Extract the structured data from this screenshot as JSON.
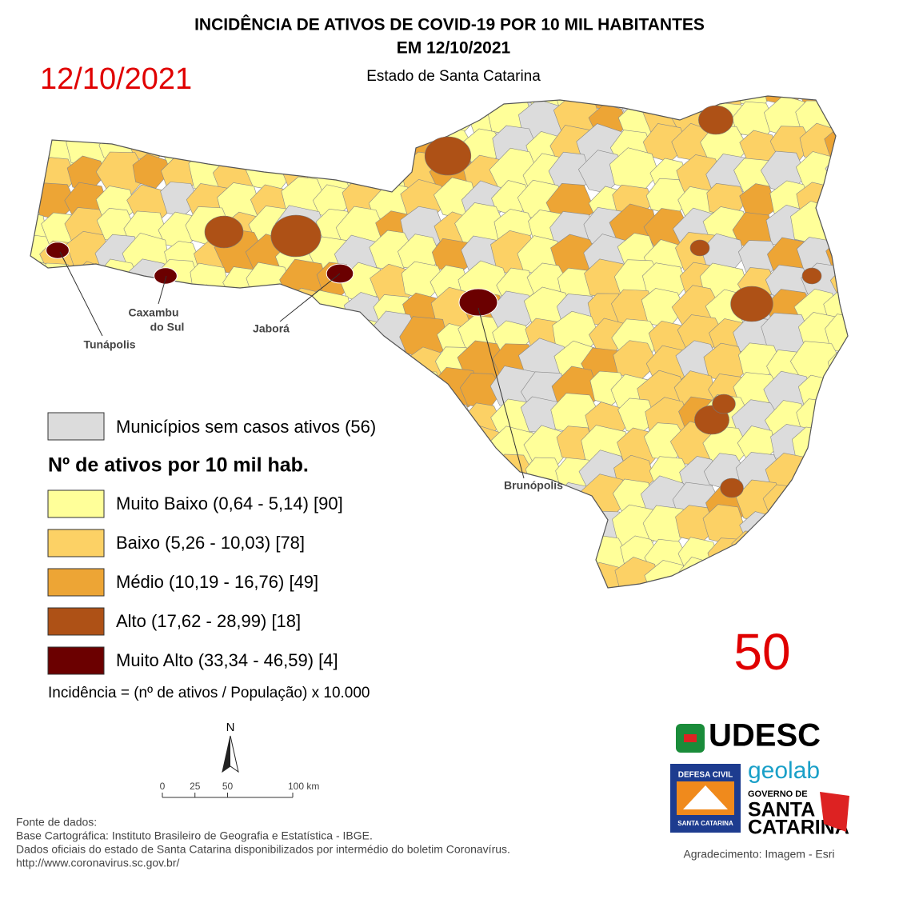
{
  "header": {
    "title_line1": "INCIDÊNCIA DE ATIVOS DE COVID-19 POR 10 MIL HABITANTES",
    "title_line2": "EM 12/10/2021",
    "subtitle": "Estado de Santa Catarina",
    "date": "12/10/2021"
  },
  "map": {
    "places": [
      {
        "label": "Tunápolis"
      },
      {
        "label": "Caxambu"
      },
      {
        "label": "do Sul"
      },
      {
        "label": "Jaborá"
      },
      {
        "label": "Brunópolis"
      }
    ]
  },
  "legend": {
    "no_cases": {
      "label": "Municípios sem casos ativos (56)",
      "color": "#dcdcdc"
    },
    "title": "Nº de ativos por 10 mil hab.",
    "items": [
      {
        "label": "Muito Baixo (0,64 - 5,14) [90]",
        "color": "#ffff99"
      },
      {
        "label": "Baixo (5,26 - 10,03) [78]",
        "color": "#fcd165"
      },
      {
        "label": "Médio (10,19 - 16,76) [49]",
        "color": "#eda535"
      },
      {
        "label": "Alto (17,62 - 28,99) [18]",
        "color": "#ae5116"
      },
      {
        "label": "Muito Alto (33,34 - 46,59) [4]",
        "color": "#6b0000"
      }
    ],
    "formula": "Incidência = (nº de ativos / População) x 10.000"
  },
  "scale": {
    "north": "N",
    "xlim": [
      0,
      100
    ],
    "ticks": [
      0,
      25,
      50,
      {
        "value": 100,
        "label": "100 km"
      }
    ]
  },
  "badge": "50",
  "sources": [
    "Fonte de dados:",
    "Base Cartográfica: Instituto Brasileiro de Geografia e Estatística - IBGE.",
    "Dados oficiais do estado de Santa Catarina disponibilizados por intermédio do boletim Coronavírus.",
    "http://www.coronavirus.sc.gov.br/"
  ],
  "logos": {
    "udesc": "UDESC",
    "geolab": "geolab",
    "defesa1": "DEFESA CIVIL",
    "defesa2": "SANTA CATARINA",
    "gov1": "GOVERNO DE",
    "gov2": "SANTA",
    "gov3": "CATARINA"
  },
  "credit": "Agradecimento: Imagem - Esri"
}
